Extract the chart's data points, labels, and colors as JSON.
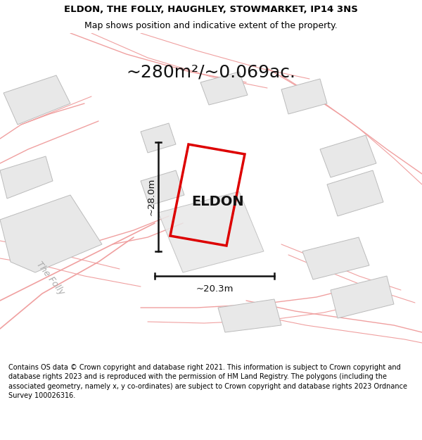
{
  "title_line1": "ELDON, THE FOLLY, HAUGHLEY, STOWMARKET, IP14 3NS",
  "title_line2": "Map shows position and indicative extent of the property.",
  "area_label": "~280m²/~0.069ac.",
  "dim_vertical": "~28.0m",
  "dim_horizontal": "~20.3m",
  "property_label": "ELDON",
  "road_label": "The Folly",
  "copyright_text": "Contains OS data © Crown copyright and database right 2021. This information is subject to Crown copyright and database rights 2023 and is reproduced with the permission of HM Land Registry. The polygons (including the associated geometry, namely x, y co-ordinates) are subject to Crown copyright and database rights 2023 Ordnance Survey 100026316.",
  "map_bg": "#ffffff",
  "property_color": "#dd0000",
  "building_fill": "#e8e8e8",
  "building_edge": "#bbbbbb",
  "road_color": "#f0a0a0",
  "road_color2": "#d08080",
  "dim_color": "#111111",
  "title_fontsize": 9.5,
  "area_fontsize": 18,
  "prop_label_fontsize": 14,
  "road_label_fontsize": 9,
  "copyright_fontsize": 7.0
}
